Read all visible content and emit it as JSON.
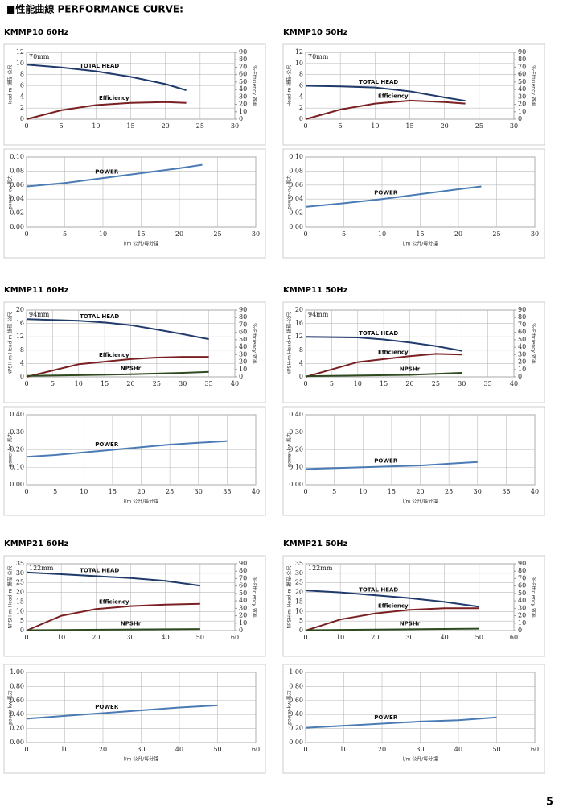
{
  "header": {
    "title": "■性能曲線 PERFORMANCE CURVE:"
  },
  "page_number": 5,
  "chart_data": [
    {
      "type": "line",
      "title": "KMMP10 60Hz",
      "annotation": "70mm",
      "ylabel": "Head-m 揚程-公尺",
      "y2label": "%-Efficiency 效率",
      "xlim": [
        0,
        30
      ],
      "xticks": [
        0,
        5,
        10,
        15,
        20,
        25,
        30
      ],
      "ylim": [
        0,
        12
      ],
      "yticks": [
        0,
        2,
        4,
        6,
        8,
        10,
        12
      ],
      "y2lim": [
        0,
        90
      ],
      "y2ticks": [
        0,
        10,
        20,
        30,
        40,
        50,
        60,
        70,
        80,
        90
      ],
      "grid": true,
      "series": [
        {
          "name": "TOTAL HEAD",
          "color": "#1f3a6b",
          "x": [
            0,
            5,
            10,
            15,
            20,
            23
          ],
          "values": [
            9.8,
            9.3,
            8.6,
            7.6,
            6.3,
            5.2
          ]
        },
        {
          "name": "Efficiency",
          "color": "#7a1f22",
          "axis": "y2",
          "x": [
            0,
            5,
            10,
            15,
            20,
            23
          ],
          "values": [
            0,
            12,
            19,
            22,
            23,
            22
          ]
        }
      ]
    },
    {
      "type": "line",
      "ylabel": "power-kw 馬力",
      "xlabel": "l/m 公升/每分鐘",
      "xlim": [
        0,
        30
      ],
      "xticks": [
        0,
        5,
        10,
        15,
        20,
        25,
        30
      ],
      "ylim": [
        0,
        0.1
      ],
      "yticks": [
        {
          "value": 0,
          "label": "0.00"
        },
        {
          "value": 0.02,
          "label": "0.02"
        },
        {
          "value": 0.04,
          "label": "0.04"
        },
        {
          "value": 0.06,
          "label": "0.06"
        },
        {
          "value": 0.08,
          "label": "0.08"
        },
        {
          "value": 0.1,
          "label": "0.10"
        }
      ],
      "grid": true,
      "series": [
        {
          "name": "POWER",
          "color": "#4a7bb5",
          "x": [
            0,
            5,
            10,
            15,
            20,
            23
          ],
          "values": [
            0.058,
            0.063,
            0.07,
            0.077,
            0.084,
            0.089
          ]
        }
      ]
    },
    {
      "type": "line",
      "title": "KMMP10 50Hz",
      "annotation": "70mm",
      "ylabel": "Head-m 揚程-公尺",
      "y2label": "%-Efficiency 效率",
      "xlim": [
        0,
        30
      ],
      "xticks": [
        0,
        5,
        10,
        15,
        20,
        25,
        30
      ],
      "ylim": [
        0,
        12
      ],
      "yticks": [
        0,
        2,
        4,
        6,
        8,
        10,
        12
      ],
      "y2lim": [
        0,
        90
      ],
      "y2ticks": [
        0,
        10,
        20,
        30,
        40,
        50,
        60,
        70,
        80,
        90
      ],
      "grid": true,
      "series": [
        {
          "name": "TOTAL HEAD",
          "color": "#1f3a6b",
          "x": [
            0,
            5,
            10,
            15,
            20,
            23
          ],
          "values": [
            6,
            5.9,
            5.7,
            5,
            3.9,
            3.3
          ]
        },
        {
          "name": "Efficiency",
          "color": "#7a1f22",
          "axis": "y2",
          "x": [
            0,
            5,
            10,
            15,
            20,
            23
          ],
          "values": [
            0,
            13,
            21,
            25,
            23,
            21
          ]
        }
      ]
    },
    {
      "type": "line",
      "ylabel": "power-kw 馬力",
      "xlabel": "l/m 公升/每分鐘",
      "xlim": [
        0,
        30
      ],
      "xticks": [
        0,
        5,
        10,
        15,
        20,
        25,
        30
      ],
      "ylim": [
        0,
        0.1
      ],
      "yticks": [
        {
          "value": 0,
          "label": "0.00"
        },
        {
          "value": 0.02,
          "label": "0.02"
        },
        {
          "value": 0.04,
          "label": "0.04"
        },
        {
          "value": 0.06,
          "label": "0.06"
        },
        {
          "value": 0.08,
          "label": "0.08"
        },
        {
          "value": 0.1,
          "label": "0.10"
        }
      ],
      "grid": true,
      "series": [
        {
          "name": "POWER",
          "color": "#4a7bb5",
          "x": [
            0,
            5,
            10,
            15,
            20,
            23
          ],
          "values": [
            0.029,
            0.034,
            0.04,
            0.047,
            0.054,
            0.058
          ]
        }
      ]
    },
    {
      "type": "line",
      "title": "KMMP11 60Hz",
      "annotation": "94mm",
      "ylabel": "NPSH-m Head-m 揚程-公尺",
      "y2label": "%-Efficiency 效率",
      "xlim": [
        0,
        40
      ],
      "xticks": [
        0,
        5,
        10,
        15,
        20,
        25,
        30,
        35,
        40
      ],
      "ylim": [
        0,
        20
      ],
      "yticks": [
        0,
        4,
        8,
        12,
        16,
        20
      ],
      "y2lim": [
        0,
        90
      ],
      "y2ticks": [
        0,
        10,
        20,
        30,
        40,
        50,
        60,
        70,
        80,
        90
      ],
      "grid": true,
      "series": [
        {
          "name": "TOTAL HEAD",
          "color": "#1f3a6b",
          "x": [
            0,
            10,
            15,
            20,
            25,
            30,
            35
          ],
          "values": [
            17.3,
            16.8,
            16.3,
            15.5,
            14.2,
            12.8,
            11.3
          ]
        },
        {
          "name": "Efficiency",
          "color": "#7a1f22",
          "axis": "y2",
          "x": [
            0,
            10,
            20,
            25,
            30,
            35
          ],
          "values": [
            0,
            17,
            24,
            26,
            27,
            27
          ]
        },
        {
          "name": "NPSHr",
          "color": "#2e4a1e",
          "x": [
            0,
            10,
            20,
            30,
            35
          ],
          "values": [
            0.3,
            0.5,
            0.8,
            1.2,
            1.5
          ]
        }
      ]
    },
    {
      "type": "line",
      "ylabel": "power-kw 馬力",
      "xlabel": "l/m 公升/每分鐘",
      "xlim": [
        0,
        40
      ],
      "xticks": [
        0,
        5,
        10,
        15,
        20,
        25,
        30,
        35,
        40
      ],
      "ylim": [
        0,
        0.4
      ],
      "yticks": [
        {
          "value": 0,
          "label": "0.00"
        },
        {
          "value": 0.1,
          "label": "0.10"
        },
        {
          "value": 0.2,
          "label": "0.20"
        },
        {
          "value": 0.3,
          "label": "0.30"
        },
        {
          "value": 0.4,
          "label": "0.40"
        }
      ],
      "grid": true,
      "series": [
        {
          "name": "POWER",
          "color": "#4a7bb5",
          "x": [
            0,
            5,
            10,
            15,
            20,
            25,
            30,
            35
          ],
          "values": [
            0.16,
            0.17,
            0.185,
            0.2,
            0.215,
            0.23,
            0.24,
            0.25
          ]
        }
      ]
    },
    {
      "type": "line",
      "title": "KMMP11 50Hz",
      "annotation": "94mm",
      "ylabel": "NPSH-m Head-m 揚程-公尺",
      "y2label": "%-Efficiency 效率",
      "xlim": [
        0,
        40
      ],
      "xticks": [
        0,
        5,
        10,
        15,
        20,
        25,
        30,
        35,
        40
      ],
      "ylim": [
        0,
        20
      ],
      "yticks": [
        0,
        4,
        8,
        12,
        16,
        20
      ],
      "y2lim": [
        0,
        90
      ],
      "y2ticks": [
        0,
        10,
        20,
        30,
        40,
        50,
        60,
        70,
        80,
        90
      ],
      "grid": true,
      "series": [
        {
          "name": "TOTAL HEAD",
          "color": "#1f3a6b",
          "x": [
            0,
            10,
            15,
            20,
            25,
            30
          ],
          "values": [
            12,
            11.8,
            11.2,
            10.3,
            9.2,
            7.8
          ]
        },
        {
          "name": "Efficiency",
          "color": "#7a1f22",
          "axis": "y2",
          "x": [
            0,
            10,
            20,
            25,
            30
          ],
          "values": [
            0,
            20,
            28,
            31,
            30
          ]
        },
        {
          "name": "NPSHr",
          "color": "#2e4a1e",
          "x": [
            0,
            20,
            30
          ],
          "values": [
            0.2,
            0.6,
            1.2
          ]
        }
      ]
    },
    {
      "type": "line",
      "ylabel": "power-kw 馬力",
      "xlabel": "l/m 公升/每分鐘",
      "xlim": [
        0,
        40
      ],
      "xticks": [
        0,
        5,
        10,
        15,
        20,
        25,
        30,
        35,
        40
      ],
      "ylim": [
        0,
        0.4
      ],
      "yticks": [
        {
          "value": 0,
          "label": "0.00"
        },
        {
          "value": 0.1,
          "label": "0.10"
        },
        {
          "value": 0.2,
          "label": "0.20"
        },
        {
          "value": 0.3,
          "label": "0.30"
        },
        {
          "value": 0.4,
          "label": "0.40"
        }
      ],
      "grid": true,
      "series": [
        {
          "name": "POWER",
          "color": "#4a7bb5",
          "x": [
            0,
            10,
            20,
            25,
            30
          ],
          "values": [
            0.09,
            0.1,
            0.11,
            0.12,
            0.13
          ]
        }
      ]
    },
    {
      "type": "line",
      "title": "KMMP21 60Hz",
      "annotation": "122mm",
      "ylabel": "NPSH-m Head-m 揚程-公尺",
      "y2label": "%-Efficiency 效率",
      "xlim": [
        0,
        60
      ],
      "xticks": [
        0,
        10,
        20,
        30,
        40,
        50,
        60
      ],
      "ylim": [
        0,
        35
      ],
      "yticks": [
        0,
        5,
        10,
        15,
        20,
        25,
        30,
        35
      ],
      "y2lim": [
        0,
        90
      ],
      "y2ticks": [
        0,
        10,
        20,
        30,
        40,
        50,
        60,
        70,
        80,
        90
      ],
      "grid": true,
      "series": [
        {
          "name": "TOTAL HEAD",
          "color": "#1f3a6b",
          "x": [
            0,
            10,
            20,
            30,
            40,
            50
          ],
          "values": [
            30.5,
            29.5,
            28.5,
            27.5,
            26,
            23.5
          ]
        },
        {
          "name": "Efficiency",
          "color": "#7a1f22",
          "axis": "y2",
          "x": [
            0,
            10,
            20,
            30,
            40,
            50
          ],
          "values": [
            0,
            20,
            29,
            33,
            35,
            36
          ]
        },
        {
          "name": "NPSHr",
          "color": "#2e4a1e",
          "x": [
            0,
            50
          ],
          "values": [
            0.2,
            0.8
          ]
        }
      ]
    },
    {
      "type": "line",
      "ylabel": "power-kw 馬力",
      "xlabel": "l/m 公升/每分鐘",
      "xlim": [
        0,
        60
      ],
      "xticks": [
        0,
        10,
        20,
        30,
        40,
        50,
        60
      ],
      "ylim": [
        0,
        1
      ],
      "yticks": [
        {
          "value": 0,
          "label": "0.00"
        },
        {
          "value": 0.2,
          "label": "0.20"
        },
        {
          "value": 0.4,
          "label": "0.40"
        },
        {
          "value": 0.6,
          "label": "0.60"
        },
        {
          "value": 0.8,
          "label": "0.80"
        },
        {
          "value": 1,
          "label": "1.00"
        }
      ],
      "grid": true,
      "series": [
        {
          "name": "POWER",
          "color": "#4a7bb5",
          "x": [
            0,
            10,
            20,
            30,
            40,
            50
          ],
          "values": [
            0.34,
            0.38,
            0.42,
            0.46,
            0.5,
            0.53
          ]
        }
      ]
    },
    {
      "type": "line",
      "title": "KMMP21 50Hz",
      "annotation": "122mm",
      "ylabel": "NPSH-m Head-m 揚程-公尺",
      "y2label": "%-Efficiency 效率",
      "xlim": [
        0,
        60
      ],
      "xticks": [
        0,
        10,
        20,
        30,
        40,
        50,
        60
      ],
      "ylim": [
        0,
        35
      ],
      "yticks": [
        0,
        5,
        10,
        15,
        20,
        25,
        30,
        35
      ],
      "y2lim": [
        0,
        90
      ],
      "y2ticks": [
        0,
        10,
        20,
        30,
        40,
        50,
        60,
        70,
        80,
        90
      ],
      "grid": true,
      "series": [
        {
          "name": "TOTAL HEAD",
          "color": "#1f3a6b",
          "x": [
            0,
            10,
            20,
            30,
            40,
            50
          ],
          "values": [
            21,
            20,
            18.5,
            17,
            15,
            12.5
          ]
        },
        {
          "name": "Efficiency",
          "color": "#7a1f22",
          "axis": "y2",
          "x": [
            0,
            10,
            20,
            30,
            40,
            50
          ],
          "values": [
            0,
            15,
            23,
            28,
            30,
            30
          ]
        },
        {
          "name": "NPSHr",
          "color": "#2e4a1e",
          "x": [
            0,
            50
          ],
          "values": [
            0.2,
            1
          ]
        }
      ]
    },
    {
      "type": "line",
      "ylabel": "power-kw 馬力",
      "xlabel": "l/m 公升/每分鐘",
      "xlim": [
        0,
        60
      ],
      "xticks": [
        0,
        10,
        20,
        30,
        40,
        50,
        60
      ],
      "ylim": [
        0,
        1
      ],
      "yticks": [
        {
          "value": 0,
          "label": "0.00"
        },
        {
          "value": 0.2,
          "label": "0.20"
        },
        {
          "value": 0.4,
          "label": "0.40"
        },
        {
          "value": 0.6,
          "label": "0.60"
        },
        {
          "value": 0.8,
          "label": "0.80"
        },
        {
          "value": 1,
          "label": "1.00"
        }
      ],
      "grid": true,
      "series": [
        {
          "name": "POWER",
          "color": "#4a7bb5",
          "x": [
            0,
            10,
            20,
            30,
            40,
            50
          ],
          "values": [
            0.21,
            0.24,
            0.27,
            0.3,
            0.32,
            0.36
          ]
        }
      ]
    }
  ]
}
